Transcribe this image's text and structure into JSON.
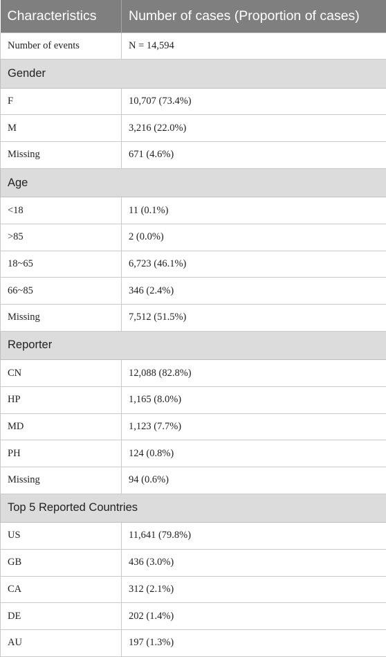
{
  "header": {
    "col1": "Characteristics",
    "col2": "Number of cases (Proportion of cases)"
  },
  "rows": [
    {
      "type": "data",
      "label": "Number of events",
      "value": "N = 14,594"
    },
    {
      "type": "section",
      "label": "Gender"
    },
    {
      "type": "data",
      "label": "F",
      "value": "10,707 (73.4%)"
    },
    {
      "type": "data",
      "label": "M",
      "value": "3,216 (22.0%)"
    },
    {
      "type": "data",
      "label": "Missing",
      "value": "671 (4.6%)"
    },
    {
      "type": "section",
      "label": "Age"
    },
    {
      "type": "data",
      "label": "<18",
      "value": "11 (0.1%)"
    },
    {
      "type": "data",
      "label": ">85",
      "value": "2 (0.0%)"
    },
    {
      "type": "data",
      "label": "18~65",
      "value": "6,723 (46.1%)"
    },
    {
      "type": "data",
      "label": "66~85",
      "value": "346 (2.4%)"
    },
    {
      "type": "data",
      "label": "Missing",
      "value": "7,512 (51.5%)"
    },
    {
      "type": "section",
      "label": "Reporter"
    },
    {
      "type": "data",
      "label": "CN",
      "value": "12,088 (82.8%)"
    },
    {
      "type": "data",
      "label": "HP",
      "value": "1,165 (8.0%)"
    },
    {
      "type": "data",
      "label": "MD",
      "value": "1,123 (7.7%)"
    },
    {
      "type": "data",
      "label": "PH",
      "value": "124 (0.8%)"
    },
    {
      "type": "data",
      "label": "Missing",
      "value": "94 (0.6%)"
    },
    {
      "type": "section",
      "label": "Top 5 Reported Countries"
    },
    {
      "type": "data",
      "label": "US",
      "value": "11,641 (79.8%)"
    },
    {
      "type": "data",
      "label": "GB",
      "value": "436 (3.0%)"
    },
    {
      "type": "data",
      "label": "CA",
      "value": "312 (2.1%)"
    },
    {
      "type": "data",
      "label": "DE",
      "value": "202 (1.4%)"
    },
    {
      "type": "data",
      "label": "AU",
      "value": "197 (1.3%)"
    }
  ]
}
